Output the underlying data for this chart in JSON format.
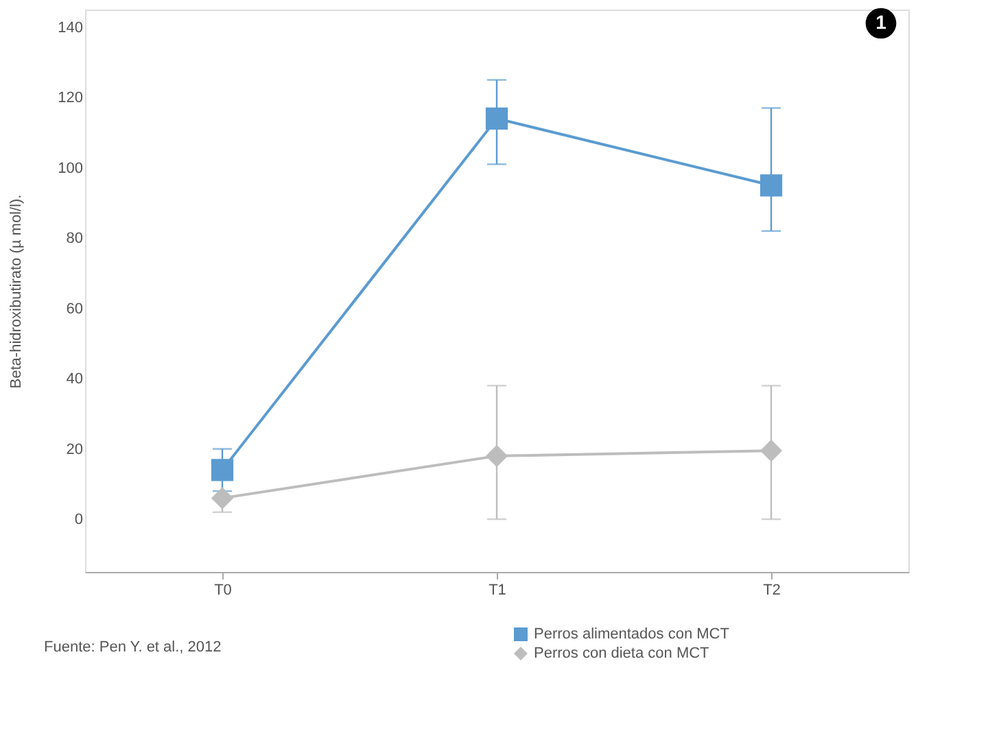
{
  "chart_data": {
    "type": "line",
    "ylabel": "Beta-hidroxibutirato (µ mol/l).",
    "categories": [
      "T0",
      "T1",
      "T2"
    ],
    "series": [
      {
        "name": "Perros alimentados con MCT",
        "color": "#5b9bd0",
        "marker": "square",
        "values": [
          14,
          114,
          95
        ],
        "errors": [
          [
            8,
            20
          ],
          [
            101,
            125
          ],
          [
            82,
            117
          ]
        ]
      },
      {
        "name": "Perros con dieta con MCT",
        "color": "#bdbdbd",
        "marker": "diamond",
        "values": [
          6,
          18,
          19.5
        ],
        "errors": [
          [
            2,
            6
          ],
          [
            0,
            38
          ],
          [
            0,
            38
          ]
        ]
      }
    ],
    "ylim": [
      -15,
      145
    ],
    "yticks": [
      0,
      20,
      40,
      60,
      80,
      100,
      120,
      140
    ],
    "legend": "bottom",
    "annotations": [
      "1",
      "Fuente: Pen Y. et al., 2012"
    ]
  }
}
